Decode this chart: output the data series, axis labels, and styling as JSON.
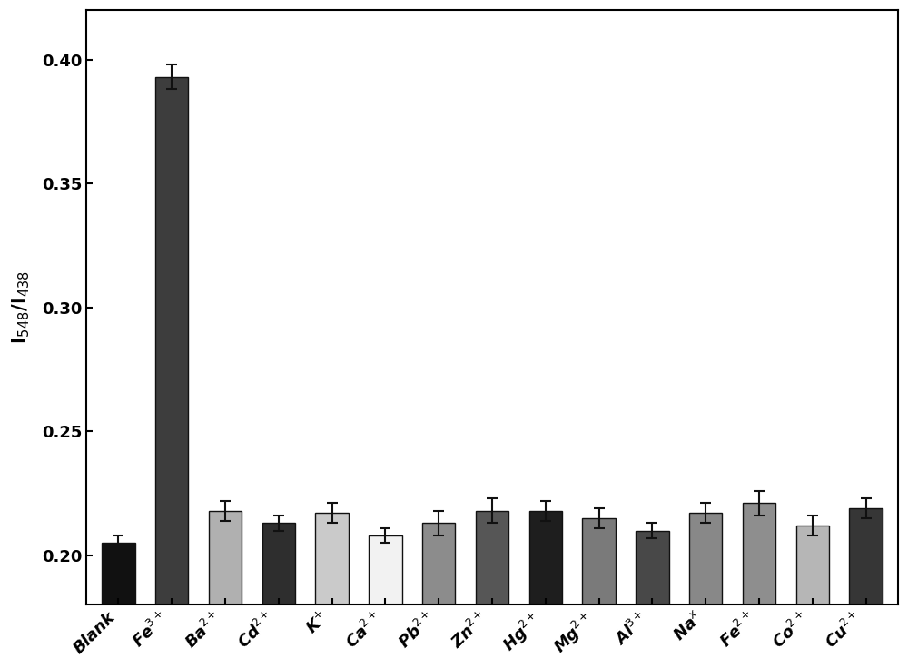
{
  "categories": [
    "Blank",
    "Fe$^{3+}$",
    "Ba$^{2+}$",
    "Cd$^{2+}$",
    "K$^{+}$",
    "Ca$^{2+}$",
    "Pb$^{2+}$",
    "Zn$^{2+}$",
    "Hg$^{2+}$",
    "Mg$^{2+}$",
    "Al$^{3+}$",
    "Na$^{x}$",
    "Fe$^{2+}$",
    "Co$^{2+}$",
    "Cu$^{2+}$"
  ],
  "values": [
    0.205,
    0.393,
    0.218,
    0.213,
    0.217,
    0.208,
    0.213,
    0.218,
    0.218,
    0.215,
    0.21,
    0.217,
    0.221,
    0.212,
    0.219
  ],
  "errors": [
    0.003,
    0.005,
    0.004,
    0.003,
    0.004,
    0.003,
    0.005,
    0.005,
    0.004,
    0.004,
    0.003,
    0.004,
    0.005,
    0.004,
    0.004
  ],
  "bar_colors": [
    "#111111",
    "#3d3d3d",
    "#b0b0b0",
    "#2e2e2e",
    "#cacaca",
    "#f2f2f2",
    "#8c8c8c",
    "#565656",
    "#1e1e1e",
    "#7a7a7a",
    "#484848",
    "#888888",
    "#8e8e8e",
    "#b6b6b6",
    "#363636"
  ],
  "ylabel": "I$_{548}$/I$_{438}$",
  "ylim": [
    0.18,
    0.42
  ],
  "yticks": [
    0.2,
    0.25,
    0.3,
    0.35,
    0.4
  ],
  "figure_width": 10.0,
  "figure_height": 7.36,
  "bar_edgecolor": "#111111",
  "errorbar_color": "#111111",
  "tick_label_fontsize": 13,
  "axis_label_fontsize": 15,
  "bar_width": 0.62
}
